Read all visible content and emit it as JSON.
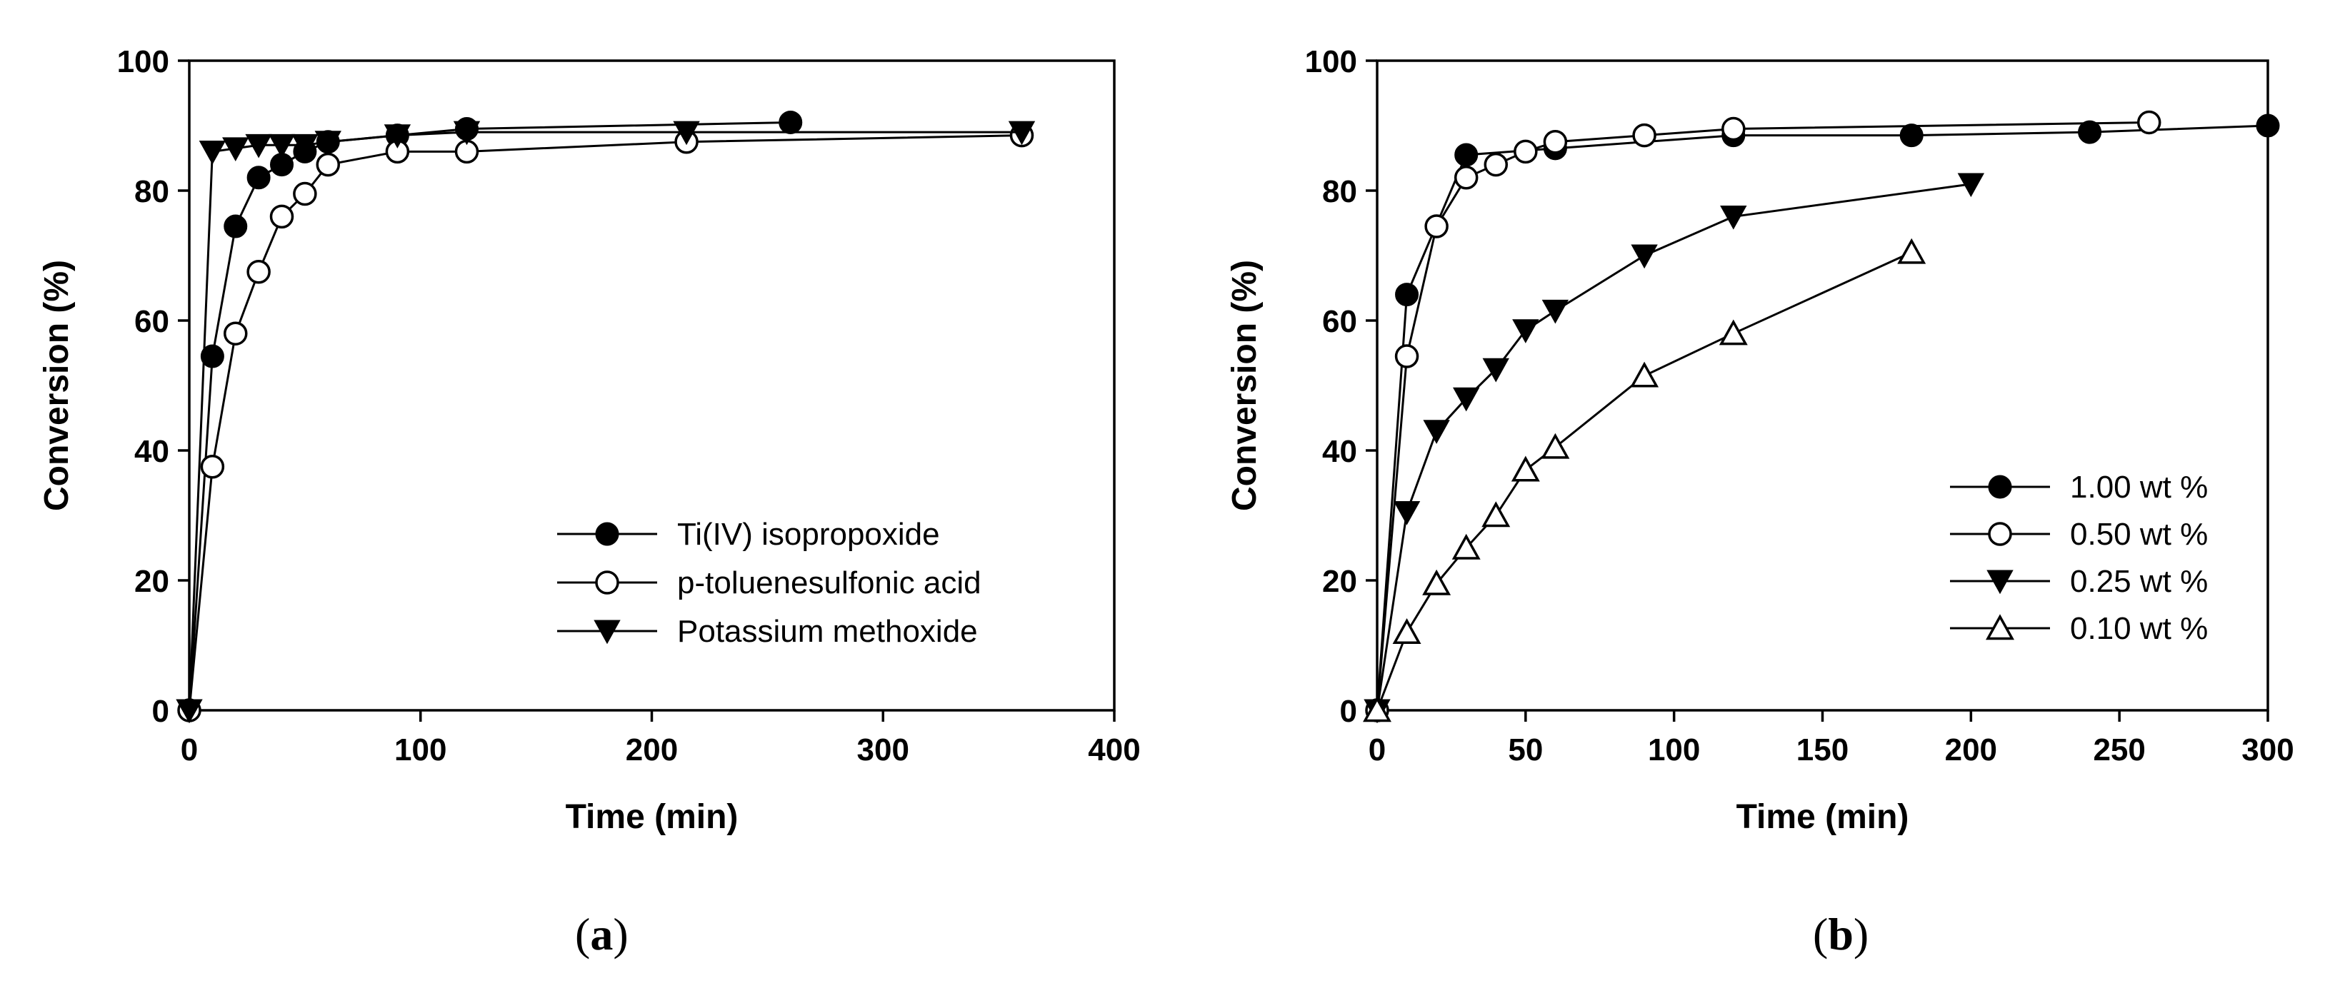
{
  "chart_data": [
    {
      "type": "line",
      "panel_label": "a",
      "title": "",
      "xlabel": "Time (min)",
      "ylabel": "Conversion (%)",
      "xlim": [
        0,
        400
      ],
      "ylim": [
        0,
        100
      ],
      "xticks": [
        "0",
        "100",
        "200",
        "300",
        "400"
      ],
      "yticks": [
        "0",
        "20",
        "40",
        "60",
        "80",
        "100"
      ],
      "xtick_values": [
        0,
        100,
        200,
        300,
        400
      ],
      "ytick_values": [
        0,
        20,
        40,
        60,
        80,
        100
      ],
      "grid": false,
      "legend_position": "bottom-right",
      "series": [
        {
          "name": "Ti(IV) isopropoxide",
          "marker": "filled-circle",
          "x": [
            0,
            10,
            20,
            30,
            40,
            50,
            60,
            90,
            120,
            260
          ],
          "y": [
            0,
            54.5,
            74.5,
            82,
            84,
            86,
            87.5,
            88.5,
            89.5,
            90.5
          ]
        },
        {
          "name": "p-toluenesulfonic acid",
          "marker": "open-circle",
          "x": [
            0,
            10,
            20,
            30,
            40,
            50,
            60,
            90,
            120,
            215,
            360
          ],
          "y": [
            0,
            37.5,
            58,
            67.5,
            76,
            79.5,
            84,
            86,
            86,
            87.5,
            88.5
          ]
        },
        {
          "name": "Potassium methoxide",
          "marker": "filled-triangle-down",
          "x": [
            0,
            10,
            20,
            30,
            40,
            50,
            60,
            90,
            120,
            215,
            360
          ],
          "y": [
            0,
            86,
            86.5,
            87,
            87,
            87,
            87.5,
            88.5,
            89,
            89,
            89
          ]
        }
      ]
    },
    {
      "type": "line",
      "panel_label": "b",
      "title": "",
      "xlabel": "Time (min)",
      "ylabel": "Conversion (%)",
      "xlim": [
        0,
        300
      ],
      "ylim": [
        0,
        100
      ],
      "xticks": [
        "0",
        "50",
        "100",
        "150",
        "200",
        "250",
        "300"
      ],
      "yticks": [
        "0",
        "20",
        "40",
        "60",
        "80",
        "100"
      ],
      "xtick_values": [
        0,
        50,
        100,
        150,
        200,
        250,
        300
      ],
      "ytick_values": [
        0,
        20,
        40,
        60,
        80,
        100
      ],
      "grid": false,
      "legend_position": "bottom-right",
      "series": [
        {
          "name": "1.00 wt %",
          "marker": "filled-circle",
          "x": [
            0,
            10,
            30,
            60,
            120,
            180,
            240,
            300
          ],
          "y": [
            0,
            64,
            85.5,
            86.5,
            88.5,
            88.5,
            89,
            90
          ]
        },
        {
          "name": "0.50 wt %",
          "marker": "open-circle",
          "x": [
            0,
            10,
            20,
            30,
            40,
            50,
            60,
            90,
            120,
            260
          ],
          "y": [
            0,
            54.5,
            74.5,
            82,
            84,
            86,
            87.5,
            88.5,
            89.5,
            90.5
          ]
        },
        {
          "name": "0.25 wt %",
          "marker": "filled-triangle-down",
          "x": [
            0,
            10,
            20,
            30,
            40,
            50,
            60,
            90,
            120,
            200
          ],
          "y": [
            0,
            30.5,
            43,
            48,
            52.5,
            58.5,
            61.5,
            70,
            76,
            81
          ]
        },
        {
          "name": "0.10 wt %",
          "marker": "open-triangle-up",
          "x": [
            0,
            10,
            20,
            30,
            40,
            50,
            60,
            90,
            120,
            180
          ],
          "y": [
            0,
            12,
            19.5,
            25,
            30,
            37,
            40.5,
            51.5,
            58,
            70.5
          ]
        }
      ]
    }
  ]
}
